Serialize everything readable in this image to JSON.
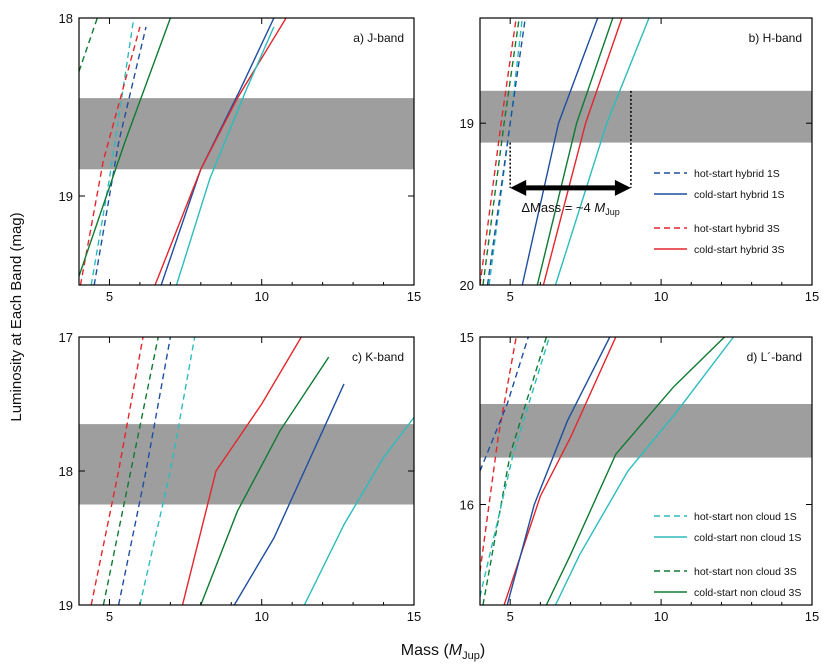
{
  "figure": {
    "ylabel": "Luminosity at Each Band (mag)",
    "xlabel_main": "Mass (",
    "xlabel_symbol": "M",
    "xlabel_sub": "Jup",
    "xlabel_close": ")"
  },
  "colors": {
    "band": "#9e9e9e",
    "blue": "#1f4ea0",
    "red": "#e3262c",
    "green": "#0f7a33",
    "cyan": "#2cbcbc"
  },
  "legend_hybrid": [
    {
      "label": "hot-start hybrid 1S",
      "color": "blue",
      "dash": true
    },
    {
      "label": "cold-start hybrid 1S",
      "color": "blue",
      "dash": false
    },
    {
      "label": "hot-start hybrid 3S",
      "color": "red",
      "dash": true
    },
    {
      "label": "cold-start hybrid 3S",
      "color": "red",
      "dash": false
    }
  ],
  "legend_noncloud": [
    {
      "label": "hot-start non cloud 1S",
      "color": "cyan",
      "dash": true
    },
    {
      "label": "cold-start non cloud 1S",
      "color": "cyan",
      "dash": false
    },
    {
      "label": "hot-start non cloud 3S",
      "color": "green",
      "dash": true
    },
    {
      "label": "cold-start non cloud 3S",
      "color": "green",
      "dash": false
    }
  ],
  "annotation": {
    "delta": "ΔMass = ~4 ",
    "symbol": "M",
    "sub": "Jup",
    "arrow_from_mass": 5,
    "arrow_to_mass": 9,
    "arrow_mag": 19.4
  },
  "chart_data": [
    {
      "id": "a",
      "type": "line",
      "title": "a) J-band",
      "xlim": [
        4,
        15
      ],
      "ylim": [
        18,
        19.5
      ],
      "xticks": [
        5,
        10,
        15
      ],
      "xtick_labels": [
        "5",
        "10",
        "15"
      ],
      "yticks": [
        18,
        19
      ],
      "ytick_labels": [
        "18",
        "19"
      ],
      "band": [
        18.45,
        18.85
      ],
      "series": [
        {
          "name": "hot-start non cloud 3S",
          "color": "green",
          "dash": true,
          "x": [
            4.0,
            4.6
          ],
          "y": [
            18.3,
            18.0
          ]
        },
        {
          "name": "hot-start non cloud 1S",
          "color": "cyan",
          "dash": true,
          "x": [
            4.4,
            5.0,
            5.8
          ],
          "y": [
            19.5,
            18.9,
            18.0
          ]
        },
        {
          "name": "hot-start hybrid 1S",
          "color": "blue",
          "dash": true,
          "x": [
            4.5,
            5.3,
            6.2
          ],
          "y": [
            19.5,
            18.7,
            18.05
          ]
        },
        {
          "name": "hot-start hybrid 3S",
          "color": "red",
          "dash": true,
          "x": [
            4.05,
            4.8,
            6.0
          ],
          "y": [
            19.5,
            18.8,
            18.05
          ]
        },
        {
          "name": "cold-start non cloud 3S",
          "color": "green",
          "dash": false,
          "x": [
            4.0,
            5.5,
            7.0
          ],
          "y": [
            19.45,
            18.7,
            18.0
          ]
        },
        {
          "name": "cold-start hybrid 1S",
          "color": "blue",
          "dash": false,
          "x": [
            6.7,
            8.0,
            9.3,
            10.4
          ],
          "y": [
            19.5,
            18.85,
            18.4,
            18.0
          ]
        },
        {
          "name": "cold-start hybrid 3S",
          "color": "red",
          "dash": false,
          "x": [
            6.5,
            8.0,
            9.2,
            10.8
          ],
          "y": [
            19.5,
            18.85,
            18.45,
            18.0
          ]
        },
        {
          "name": "cold-start non cloud 1S",
          "color": "cyan",
          "dash": false,
          "x": [
            7.2,
            8.3,
            9.5,
            10.4
          ],
          "y": [
            19.5,
            18.9,
            18.4,
            18.05
          ]
        }
      ]
    },
    {
      "id": "b",
      "type": "line",
      "title": "b) H-band",
      "xlim": [
        4,
        15
      ],
      "ylim": [
        18.35,
        20
      ],
      "xticks": [
        5,
        10,
        15
      ],
      "xtick_labels": [
        "5",
        "10",
        "15"
      ],
      "yticks": [
        19,
        20
      ],
      "ytick_labels": [
        "19",
        "20"
      ],
      "band": [
        18.8,
        19.12
      ],
      "series": [
        {
          "name": "hot-start non cloud 1S",
          "color": "cyan",
          "dash": true,
          "x": [
            4.3,
            5.0,
            5.4
          ],
          "y": [
            20.0,
            19.0,
            18.35
          ]
        },
        {
          "name": "hot-start non cloud 3S",
          "color": "green",
          "dash": true,
          "x": [
            4.1,
            4.8,
            5.3
          ],
          "y": [
            20.0,
            19.0,
            18.35
          ]
        },
        {
          "name": "hot-start hybrid 1S",
          "color": "blue",
          "dash": true,
          "x": [
            4.25,
            5.0,
            5.5
          ],
          "y": [
            20.0,
            19.0,
            18.35
          ]
        },
        {
          "name": "hot-start hybrid 3S",
          "color": "red",
          "dash": true,
          "x": [
            4.0,
            4.7,
            5.2
          ],
          "y": [
            20.0,
            19.0,
            18.35
          ]
        },
        {
          "name": "cold-start hybrid 1S",
          "color": "blue",
          "dash": false,
          "x": [
            5.4,
            6.6,
            7.9
          ],
          "y": [
            20.0,
            19.0,
            18.35
          ]
        },
        {
          "name": "cold-start non cloud 3S",
          "color": "green",
          "dash": false,
          "x": [
            5.9,
            7.2,
            8.4
          ],
          "y": [
            20.0,
            19.0,
            18.35
          ]
        },
        {
          "name": "cold-start hybrid 3S",
          "color": "red",
          "dash": false,
          "x": [
            6.1,
            7.5,
            8.7
          ],
          "y": [
            20.0,
            19.0,
            18.35
          ]
        },
        {
          "name": "cold-start non cloud 1S",
          "color": "cyan",
          "dash": false,
          "x": [
            6.5,
            8.2,
            9.6
          ],
          "y": [
            20.0,
            19.0,
            18.35
          ]
        }
      ]
    },
    {
      "id": "c",
      "type": "line",
      "title": "c) K-band",
      "xlim": [
        4,
        15
      ],
      "ylim": [
        17,
        19
      ],
      "xticks": [
        5,
        10,
        15
      ],
      "xtick_labels": [
        "5",
        "10",
        "15"
      ],
      "yticks": [
        17,
        18,
        19
      ],
      "ytick_labels": [
        "17",
        "18",
        "19"
      ],
      "band": [
        17.65,
        18.25
      ],
      "series": [
        {
          "name": "hot-start hybrid 3S",
          "color": "red",
          "dash": true,
          "x": [
            4.4,
            5.3,
            6.1
          ],
          "y": [
            19.0,
            18.0,
            17.0
          ]
        },
        {
          "name": "hot-start non cloud 3S",
          "color": "green",
          "dash": true,
          "x": [
            4.8,
            5.7,
            6.6
          ],
          "y": [
            19.0,
            18.0,
            17.0
          ]
        },
        {
          "name": "hot-start hybrid 1S",
          "color": "blue",
          "dash": true,
          "x": [
            5.3,
            6.2,
            7.0
          ],
          "y": [
            19.0,
            18.0,
            17.0
          ]
        },
        {
          "name": "hot-start non cloud 1S",
          "color": "cyan",
          "dash": true,
          "x": [
            6.0,
            7.0,
            7.8
          ],
          "y": [
            19.0,
            18.0,
            17.0
          ]
        },
        {
          "name": "cold-start hybrid 3S",
          "color": "red",
          "dash": false,
          "x": [
            7.4,
            8.5,
            10.0,
            11.3
          ],
          "y": [
            19.0,
            18.0,
            17.5,
            17.0
          ]
        },
        {
          "name": "cold-start non cloud 3S",
          "color": "green",
          "dash": false,
          "x": [
            8.0,
            9.2,
            10.6,
            12.2
          ],
          "y": [
            19.0,
            18.3,
            17.7,
            17.15
          ]
        },
        {
          "name": "cold-start hybrid 1S",
          "color": "blue",
          "dash": false,
          "x": [
            9.1,
            10.4,
            12.7
          ],
          "y": [
            19.0,
            18.5,
            17.35
          ]
        },
        {
          "name": "cold-start non cloud 1S",
          "color": "cyan",
          "dash": false,
          "x": [
            11.4,
            12.7,
            14.0,
            15.0
          ],
          "y": [
            19.0,
            18.4,
            17.9,
            17.6
          ]
        }
      ]
    },
    {
      "id": "d",
      "type": "line",
      "title": "d) L´-band",
      "xlim": [
        4,
        15
      ],
      "ylim": [
        15,
        16.6
      ],
      "xticks": [
        5,
        10,
        15
      ],
      "xtick_labels": [
        "5",
        "10",
        "15"
      ],
      "yticks": [
        15,
        16
      ],
      "ytick_labels": [
        "15",
        "16"
      ],
      "band": [
        15.4,
        15.72
      ],
      "series": [
        {
          "name": "hot-start hybrid 3S",
          "color": "red",
          "dash": true,
          "x": [
            4.0,
            4.6,
            5.2
          ],
          "y": [
            16.4,
            15.6,
            15.0
          ]
        },
        {
          "name": "hot-start hybrid 1S",
          "color": "blue",
          "dash": true,
          "x": [
            4.0,
            4.9,
            5.6
          ],
          "y": [
            15.8,
            15.4,
            15.0
          ]
        },
        {
          "name": "hot-start non cloud 3S",
          "color": "green",
          "dash": true,
          "x": [
            4.1,
            5.0,
            6.2
          ],
          "y": [
            16.6,
            15.7,
            15.0
          ]
        },
        {
          "name": "hot-start non cloud 1S",
          "color": "cyan",
          "dash": true,
          "x": [
            4.0,
            5.1,
            6.3
          ],
          "y": [
            16.55,
            15.7,
            15.0
          ]
        },
        {
          "name": "cold-start hybrid 3S",
          "color": "red",
          "dash": false,
          "x": [
            4.8,
            6.0,
            7.0,
            8.5
          ],
          "y": [
            16.6,
            15.95,
            15.6,
            15.0
          ]
        },
        {
          "name": "cold-start hybrid 1S",
          "color": "blue",
          "dash": false,
          "x": [
            4.9,
            5.8,
            6.9,
            8.3
          ],
          "y": [
            16.6,
            16.0,
            15.5,
            15.0
          ]
        },
        {
          "name": "cold-start non cloud 3S",
          "color": "green",
          "dash": false,
          "x": [
            6.2,
            7.0,
            8.5,
            10.4,
            12.1
          ],
          "y": [
            16.6,
            16.3,
            15.7,
            15.3,
            15.0
          ]
        },
        {
          "name": "cold-start non cloud 1S",
          "color": "cyan",
          "dash": false,
          "x": [
            6.5,
            7.3,
            8.9,
            10.5,
            12.4
          ],
          "y": [
            16.6,
            16.3,
            15.8,
            15.45,
            15.0
          ]
        }
      ]
    }
  ]
}
